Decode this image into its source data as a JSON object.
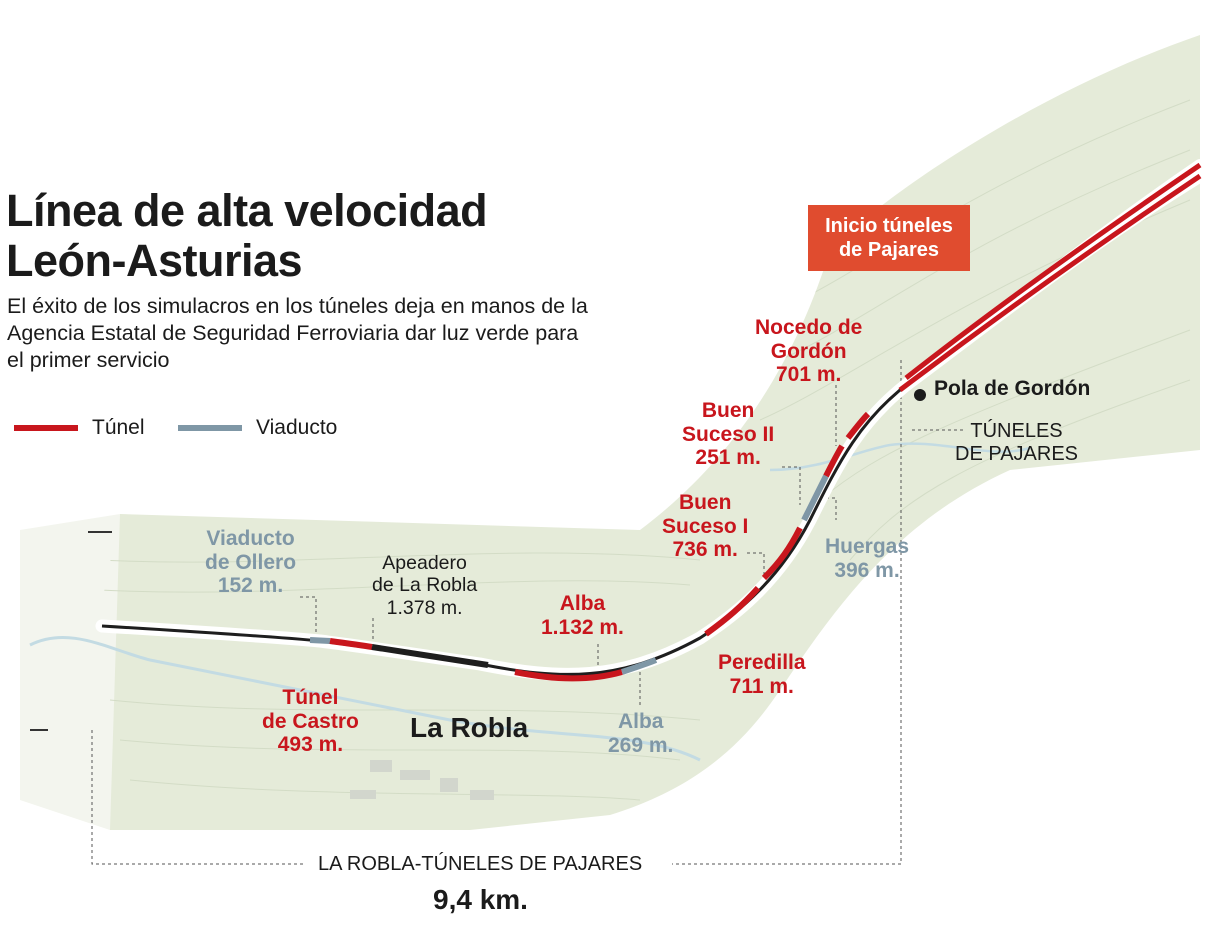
{
  "title": {
    "line1": "Línea de alta velocidad",
    "line2": "León-Asturias"
  },
  "subtitle": "El éxito de los simulacros  en los túneles deja en manos de la Agencia Estatal de Seguridad Ferroviaria dar luz verde para el primer servicio",
  "legend": {
    "tunnel": {
      "label": "Túnel",
      "color": "#c8161d"
    },
    "viaduct": {
      "label": "Viaducto",
      "color": "#7f97a6"
    }
  },
  "badge": {
    "line1": "Inicio túneles",
    "line2": "de Pajares"
  },
  "places": {
    "la_robla": "La Robla",
    "pola": "Pola de Gordón",
    "tuneles": {
      "line1": "TÚNELES",
      "line2": "DE PAJARES"
    }
  },
  "segments": {
    "viaducto_ollero": {
      "name1": "Viaducto",
      "name2": "de Ollero",
      "length": "152 m."
    },
    "tunel_castro": {
      "name1": "Túnel",
      "name2": "de Castro",
      "length": "493 m."
    },
    "apeadero": {
      "name1": "Apeadero",
      "name2": "de La Robla",
      "length": "1.378 m."
    },
    "alba_tunnel": {
      "name": "Alba",
      "length": "1.132 m."
    },
    "alba_viaduct": {
      "name": "Alba",
      "length": "269 m."
    },
    "peredilla": {
      "name": "Peredilla",
      "length": "711 m."
    },
    "buen_suceso_1": {
      "name1": "Buen",
      "name2": "Suceso I",
      "length": "736 m."
    },
    "huergas": {
      "name": "Huergas",
      "length": "396 m."
    },
    "buen_suceso_2": {
      "name1": "Buen",
      "name2": "Suceso II",
      "length": "251 m."
    },
    "nocedo": {
      "name1": "Nocedo de",
      "name2": "Gordón",
      "length": "701 m."
    }
  },
  "distance": {
    "label": "LA ROBLA-TÚNELES DE PAJARES",
    "value": "9,4 km."
  },
  "colors": {
    "terrain": "#e6ecdc",
    "rivers": "#c4dde4",
    "badge": "#e04c2f"
  }
}
